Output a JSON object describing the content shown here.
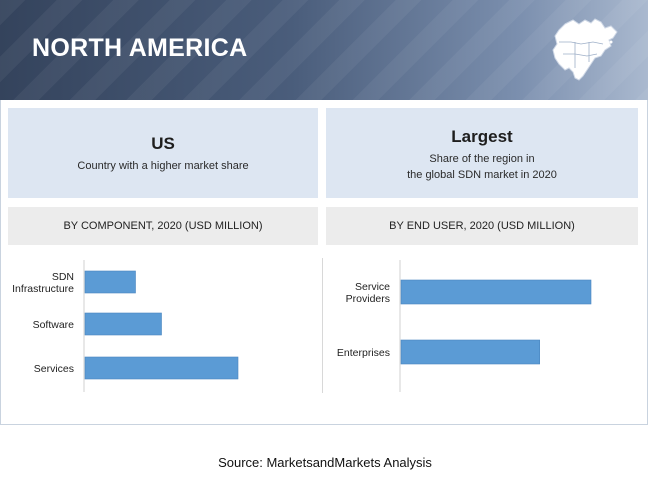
{
  "header": {
    "title": "NORTH AMERICA",
    "map_icon": "north-america-map-icon"
  },
  "highlights": [
    {
      "main": "US",
      "sub": [
        "Country with a higher market share"
      ]
    },
    {
      "main": "Largest",
      "sub": [
        "Share of the region in",
        "the global SDN market in 2020"
      ]
    }
  ],
  "colors": {
    "bar": "#5b9bd5",
    "bar_border": "#4a86c0",
    "header": "#3e4f6b",
    "panel": "#dde6f2"
  },
  "chart_data": [
    {
      "type": "bar",
      "orientation": "horizontal",
      "title": "BY COMPONENT,  2020 (USD MILLION)",
      "categories": [
        "SDN Infrastructure",
        "Software",
        "Services"
      ],
      "category_lines": [
        [
          "SDN",
          "Infrastructure"
        ],
        [
          "Software"
        ],
        [
          "Services"
        ]
      ],
      "values": [
        33,
        50,
        100
      ],
      "xlim": [
        0,
        100
      ],
      "grid": false
    },
    {
      "type": "bar",
      "orientation": "horizontal",
      "title": "BY END USER, 2020 (USD MILLION)",
      "categories": [
        "Service Providers",
        "Enterprises"
      ],
      "category_lines": [
        [
          "Service",
          "Providers"
        ],
        [
          "Enterprises"
        ]
      ],
      "values": [
        100,
        73
      ],
      "xlim": [
        0,
        100
      ],
      "grid": false
    }
  ],
  "source": "Source: MarketsandMarkets Analysis"
}
